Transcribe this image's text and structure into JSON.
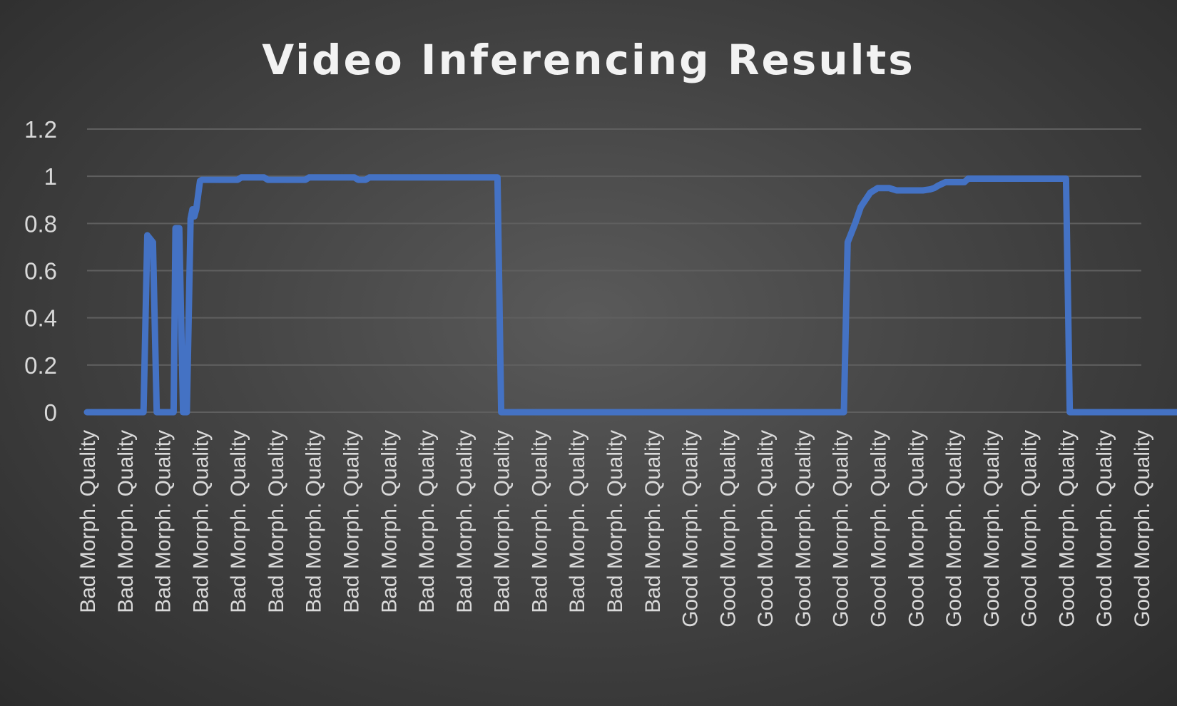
{
  "chart_data": {
    "type": "line",
    "title": "Video Inferencing Results",
    "xlabel": "",
    "ylabel": "",
    "ylim": [
      0,
      1.2
    ],
    "yticks": [
      "0",
      "0.2",
      "0.4",
      "0.6",
      "0.8",
      "1",
      "1.2"
    ],
    "grid": true,
    "legend": "none",
    "line_color": "#4472c4",
    "categories": [
      "Bad Morph. Quality",
      "Bad Morph. Quality",
      "Bad Morph. Quality",
      "Bad Morph. Quality",
      "Bad Morph. Quality",
      "Bad Morph. Quality",
      "Bad Morph. Quality",
      "Bad Morph. Quality",
      "Bad Morph. Quality",
      "Bad Morph. Quality",
      "Bad Morph. Quality",
      "Bad Morph. Quality",
      "Bad Morph. Quality",
      "Bad Morph. Quality",
      "Bad Morph. Quality",
      "Bad Morph. Quality",
      "Good Morph. Quality",
      "Good Morph. Quality",
      "Good Morph. Quality",
      "Good Morph. Quality",
      "Good Morph. Quality",
      "Good Morph. Quality",
      "Good Morph. Quality",
      "Good Morph. Quality",
      "Good Morph. Quality",
      "Good Morph. Quality",
      "Good Morph. Quality",
      "Good Morph. Quality",
      "Good Morph. Quality"
    ],
    "series": [
      {
        "x": [
          0,
          1.5,
          1.6,
          1.75,
          1.85,
          1.9,
          2.3,
          2.35,
          2.45,
          2.55,
          2.65,
          2.75,
          2.8,
          2.85,
          2.9,
          3.0,
          3.05,
          3.2,
          4.0,
          4.1,
          4.7,
          4.8,
          5.8,
          5.9,
          7.1,
          7.2,
          7.4,
          7.5,
          10.9,
          11.0,
          20.1,
          20.2,
          20.4,
          20.55,
          20.8,
          21.0,
          21.3,
          21.5,
          22.0,
          22.2,
          22.4,
          22.5,
          22.6,
          22.8,
          23.3,
          23.4,
          26.0,
          26.1,
          29.0
        ],
        "y": [
          0,
          0,
          0.75,
          0.72,
          0,
          0,
          0,
          0.78,
          0.78,
          0,
          0,
          0.82,
          0.86,
          0.83,
          0.86,
          0.98,
          0.985,
          0.985,
          0.985,
          0.995,
          0.995,
          0.985,
          0.985,
          0.995,
          0.995,
          0.985,
          0.985,
          0.995,
          0.995,
          0,
          0,
          0.72,
          0.8,
          0.87,
          0.93,
          0.95,
          0.95,
          0.94,
          0.94,
          0.94,
          0.945,
          0.95,
          0.96,
          0.975,
          0.975,
          0.99,
          0.99,
          0,
          0
        ]
      }
    ]
  }
}
